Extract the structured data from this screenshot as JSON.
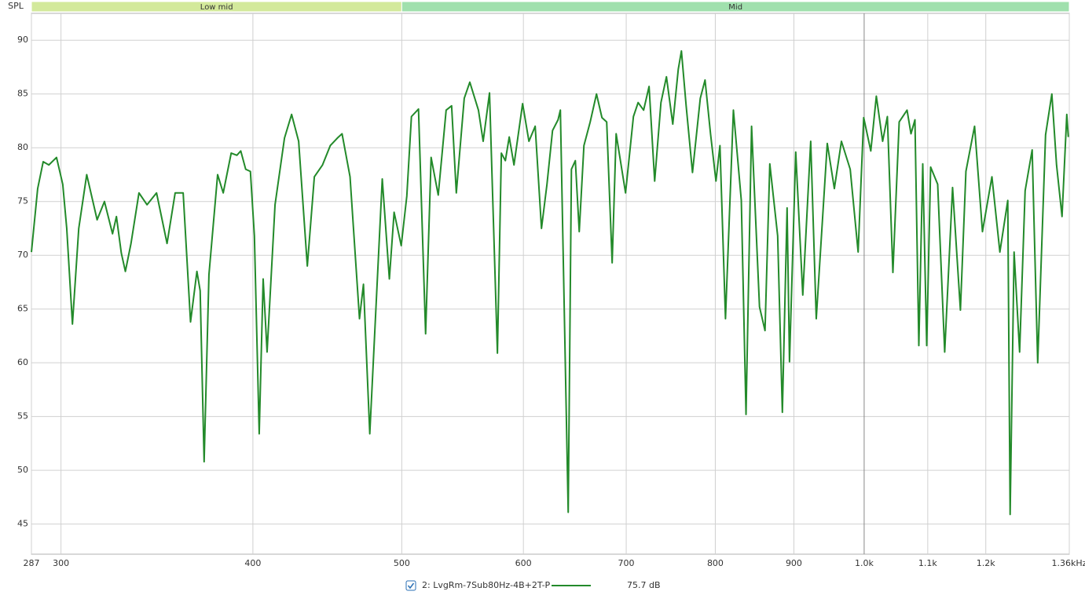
{
  "chart_data": {
    "type": "line",
    "y_label": "SPL",
    "xscale": "log",
    "bands": [
      {
        "label": "Low mid",
        "from": 287,
        "to": 500,
        "color": "#d3e99b"
      },
      {
        "label": "Mid",
        "from": 500,
        "to": 1360,
        "color": "#a0e0ad"
      }
    ],
    "xlim": [
      287,
      1360
    ],
    "ylim": [
      42.2,
      92.5
    ],
    "xticks": [
      287,
      300,
      400,
      500,
      600,
      700,
      800,
      900,
      {
        "value": 1000,
        "label": "1.0k"
      },
      {
        "value": 1100,
        "label": "1.1k"
      },
      {
        "value": 1200,
        "label": "1.2k"
      },
      {
        "value": 1360,
        "label": "1.36kHz"
      }
    ],
    "yticks": [
      45,
      50,
      55,
      60,
      65,
      70,
      75,
      80,
      85,
      90
    ],
    "grid": true,
    "series": [
      {
        "name": "2: LvgRm-7Sub80Hz-4B+2T-P",
        "color": "#238a2a",
        "readout": "75.7 dB",
        "x": [
          287,
          289.7,
          292.1,
          294.6,
          298,
          300.8,
          302.6,
          305.2,
          308.1,
          311.8,
          316.7,
          320.2,
          324.1,
          326,
          328.4,
          330.4,
          333.2,
          337.2,
          341.3,
          346.2,
          351.7,
          356,
          360.3,
          364.3,
          367.8,
          369.6,
          371.8,
          374.5,
          379.4,
          382.6,
          387.2,
          390.5,
          392.8,
          395.7,
          398.5,
          400.9,
          403.8,
          406.2,
          408.6,
          413.5,
          419.4,
          423.9,
          428.4,
          434,
          438.6,
          444,
          449.2,
          454,
          457.2,
          462.7,
          469.3,
          472.1,
          476.6,
          485.6,
          490.8,
          494.3,
          499.6,
          503.8,
          507.3,
          512.7,
          518.2,
          522.5,
          528.1,
          534.4,
          538.8,
          542.6,
          549.1,
          553.7,
          560.9,
          564.9,
          570.3,
          577.1,
          580.5,
          584,
          587.4,
          591.6,
          599.3,
          605,
          610.7,
          616.5,
          621.6,
          626.8,
          632,
          634.2,
          641.7,
          644.8,
          648.6,
          652.4,
          657,
          663.2,
          669.5,
          675,
          679.8,
          685.4,
          689.5,
          699.3,
          707.6,
          712.6,
          718.5,
          724.4,
          730.5,
          737.4,
          743.5,
          750.6,
          756.8,
          760.4,
          765.8,
          773.1,
          782.2,
          787.8,
          794.3,
          800.8,
          805.6,
          812.3,
          822,
          831.8,
          837.7,
          844.7,
          854.8,
          861.9,
          868.1,
          878.4,
          884.6,
          890.9,
          894.1,
          902.5,
          912.1,
          923,
          930.7,
          946.2,
          956.3,
          966.5,
          979.3,
          991,
          999.3,
          1010,
          1018.4,
          1028.1,
          1035.4,
          1044,
          1053.9,
          1066.4,
          1072.7,
          1079.1,
          1085.4,
          1091.8,
          1098.3,
          1104.8,
          1116.5,
          1128.3,
          1141.7,
          1155.2,
          1164.8,
          1180,
          1194,
          1211.1,
          1225.6,
          1240.2,
          1244.6,
          1252,
          1262.4,
          1272.9,
          1286.4,
          1297.1,
          1312.5,
          1324.9,
          1334.3,
          1345.3,
          1354.9,
          1358
        ],
        "values": [
          70.3,
          76.2,
          78.7,
          78.4,
          79.1,
          76.6,
          72.5,
          63.6,
          72.5,
          77.5,
          73.3,
          75,
          72,
          73.6,
          70.2,
          68.5,
          71.1,
          75.8,
          74.7,
          75.8,
          71.1,
          75.8,
          75.8,
          63.8,
          68.5,
          66.7,
          50.8,
          68.2,
          77.5,
          75.8,
          79.5,
          79.3,
          79.7,
          78,
          77.8,
          71.8,
          53.4,
          67.8,
          61,
          74.7,
          80.9,
          83.1,
          80.6,
          69,
          77.3,
          78.4,
          80.2,
          80.9,
          81.3,
          77.3,
          64.1,
          67.3,
          53.4,
          77.1,
          67.8,
          74,
          70.9,
          75.5,
          82.9,
          83.6,
          62.7,
          79.1,
          75.6,
          83.5,
          83.9,
          75.8,
          84.6,
          86.1,
          83.5,
          80.6,
          85.1,
          60.9,
          79.5,
          78.8,
          81,
          78.4,
          84.1,
          80.6,
          82,
          72.5,
          76.6,
          81.6,
          82.6,
          83.5,
          46.1,
          78,
          78.8,
          72.2,
          80.2,
          82.4,
          85,
          82.8,
          82.4,
          69.3,
          81.3,
          75.8,
          82.9,
          84.2,
          83.5,
          85.7,
          76.9,
          84.2,
          86.6,
          82.2,
          87.3,
          89,
          83.9,
          77.7,
          84.6,
          86.3,
          81.3,
          76.9,
          80.2,
          64.1,
          83.5,
          75.1,
          55.2,
          82,
          65.2,
          63,
          78.5,
          71.8,
          55.4,
          74.4,
          60.1,
          79.6,
          66.3,
          80.6,
          64.1,
          80.4,
          76.2,
          80.6,
          78,
          70.3,
          82.8,
          79.7,
          84.8,
          80.6,
          82.9,
          68.4,
          82.4,
          83.5,
          81.3,
          82.6,
          61.6,
          78.5,
          61.6,
          78.2,
          76.6,
          61,
          76.3,
          64.9,
          77.8,
          82,
          72.2,
          77.3,
          70.3,
          75.1,
          45.9,
          70.3,
          61,
          76,
          79.8,
          60,
          81.2,
          85,
          78.4,
          73.6,
          83.1,
          81
        ]
      }
    ]
  }
}
